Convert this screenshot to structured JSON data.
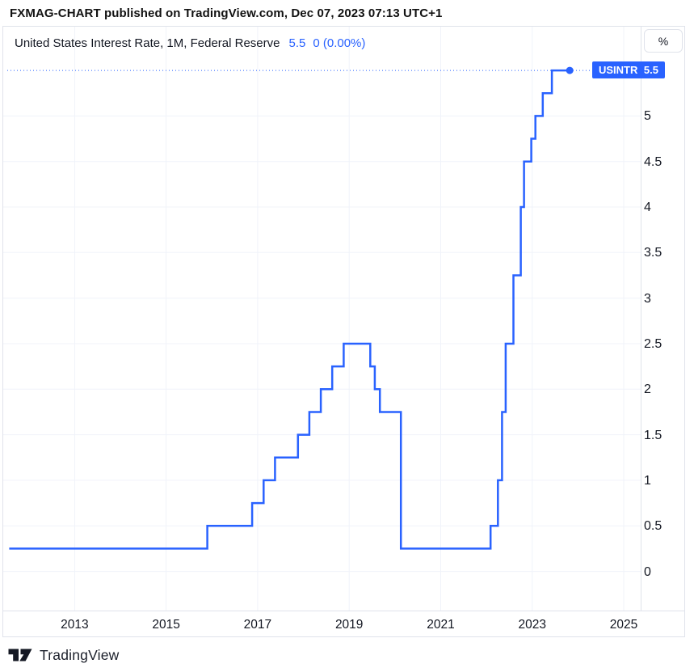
{
  "publisher_bar": {
    "text": "FXMAG-CHART published on TradingView.com, Dec 07, 2023 07:13 UTC+1"
  },
  "legend": {
    "title": "United States Interest Rate, 1M, Federal Reserve",
    "last_value": "5.5",
    "change": "0 (0.00%)"
  },
  "price_tag": {
    "symbol": "USINTR",
    "value": "5.5"
  },
  "unit_button_label": "%",
  "footer": {
    "brand": "TradingView"
  },
  "colors": {
    "accent": "#2962FF",
    "text": "#131722",
    "border": "#e0e3eb",
    "grid": "#f0f3fa"
  },
  "chart_data": {
    "type": "line",
    "line_style": "step",
    "title": "United States Interest Rate, 1M, Federal Reserve",
    "symbol": "USINTR",
    "interval": "1M",
    "source": "Federal Reserve",
    "unit": "%",
    "grid": true,
    "legend_position": "top-left",
    "x_ticks": [
      2013,
      2015,
      2017,
      2019,
      2021,
      2023,
      2025
    ],
    "y_ticks": [
      5,
      4.5,
      4,
      3.5,
      3,
      2.5,
      2,
      1.5,
      1,
      0.5,
      0
    ],
    "xlim": [
      2011.44,
      2025.37
    ],
    "ylim": [
      -0.43,
      5.98
    ],
    "line_color": "#2962FF",
    "last_value": 5.5,
    "points": [
      [
        2011.57,
        0.25
      ],
      [
        2015.9,
        0.5
      ],
      [
        2016.88,
        0.75
      ],
      [
        2017.13,
        1.0
      ],
      [
        2017.38,
        1.25
      ],
      [
        2017.88,
        1.5
      ],
      [
        2018.13,
        1.75
      ],
      [
        2018.38,
        2.0
      ],
      [
        2018.63,
        2.25
      ],
      [
        2018.88,
        2.5
      ],
      [
        2019.46,
        2.25
      ],
      [
        2019.56,
        2.0
      ],
      [
        2019.67,
        1.75
      ],
      [
        2020.13,
        0.25
      ],
      [
        2022.09,
        0.5
      ],
      [
        2022.25,
        1.0
      ],
      [
        2022.34,
        1.75
      ],
      [
        2022.42,
        2.5
      ],
      [
        2022.59,
        3.25
      ],
      [
        2022.75,
        4.0
      ],
      [
        2022.82,
        4.5
      ],
      [
        2022.98,
        4.75
      ],
      [
        2023.07,
        5.0
      ],
      [
        2023.23,
        5.25
      ],
      [
        2023.43,
        5.5
      ],
      [
        2023.82,
        5.5
      ]
    ]
  }
}
